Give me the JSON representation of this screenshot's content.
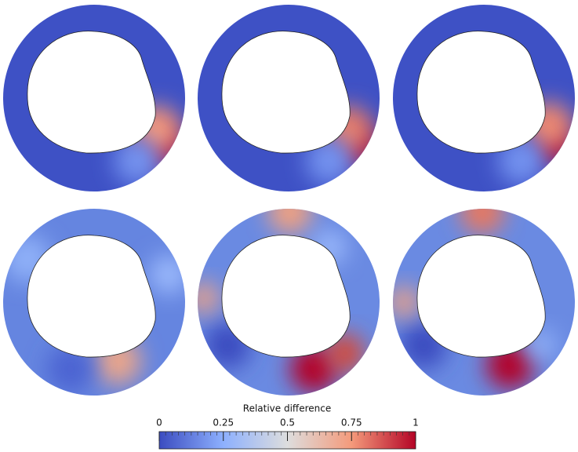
{
  "colorbar": {
    "title": "Relative difference",
    "range": [
      0,
      1
    ],
    "ticks": [
      0,
      0.25,
      0.5,
      0.75,
      1
    ]
  }
}
